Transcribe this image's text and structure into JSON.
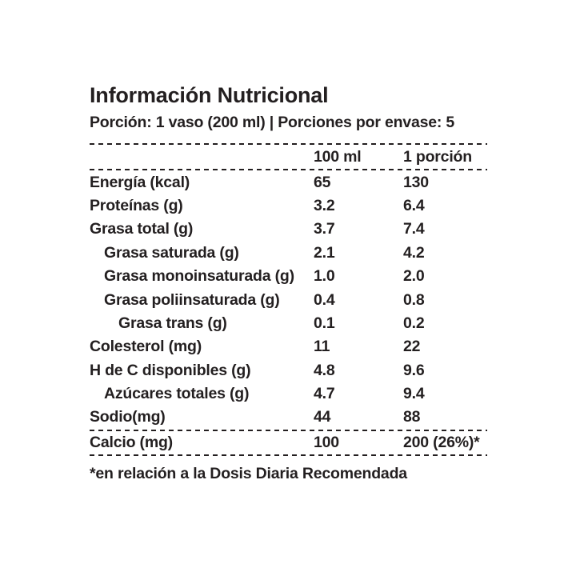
{
  "label": {
    "title": "Información Nutricional",
    "serving_info": "Porción: 1 vaso (200 ml) | Porciones por envase: 5",
    "columns": [
      "100 ml",
      "1 porción"
    ],
    "rows": [
      {
        "name": "Energía (kcal)",
        "per_100ml": "65",
        "per_serving": "130",
        "indent": 0,
        "divider_after": false
      },
      {
        "name": "Proteínas (g)",
        "per_100ml": "3.2",
        "per_serving": "6.4",
        "indent": 0,
        "divider_after": false
      },
      {
        "name": "Grasa total (g)",
        "per_100ml": "3.7",
        "per_serving": "7.4",
        "indent": 0,
        "divider_after": false
      },
      {
        "name": "Grasa saturada (g)",
        "per_100ml": "2.1",
        "per_serving": "4.2",
        "indent": 1,
        "divider_after": false
      },
      {
        "name": "Grasa monoinsaturada (g)",
        "per_100ml": "1.0",
        "per_serving": "2.0",
        "indent": 1,
        "divider_after": false
      },
      {
        "name": "Grasa poliinsaturada (g)",
        "per_100ml": "0.4",
        "per_serving": "0.8",
        "indent": 1,
        "divider_after": false
      },
      {
        "name": "Grasa trans (g)",
        "per_100ml": "0.1",
        "per_serving": "0.2",
        "indent": 2,
        "divider_after": false
      },
      {
        "name": "Colesterol (mg)",
        "per_100ml": "11",
        "per_serving": "22",
        "indent": 0,
        "divider_after": false
      },
      {
        "name": "H de C disponibles (g)",
        "per_100ml": "4.8",
        "per_serving": "9.6",
        "indent": 0,
        "divider_after": false
      },
      {
        "name": "Azúcares totales (g)",
        "per_100ml": "4.7",
        "per_serving": "9.4",
        "indent": 1,
        "divider_after": false
      },
      {
        "name": "Sodio(mg)",
        "per_100ml": "44",
        "per_serving": "88",
        "indent": 0,
        "divider_after": true
      },
      {
        "name": "Calcio (mg)",
        "per_100ml": "100",
        "per_serving": "200 (26%)*",
        "indent": 0,
        "divider_after": true
      }
    ],
    "footnote": "*en relación a la Dosis Diaria Recomendada",
    "colors": {
      "text": "#231f20",
      "background": "#ffffff"
    }
  }
}
